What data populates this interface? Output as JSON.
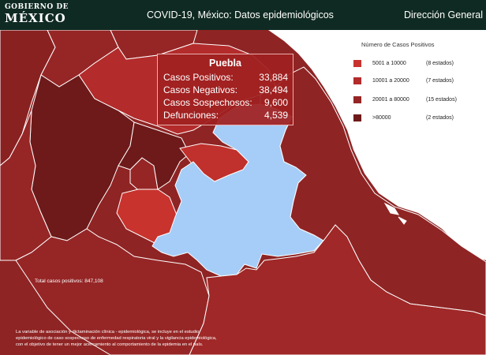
{
  "header": {
    "logo_line1": "GOBIERNO DE",
    "logo_line2": "MÉXICO",
    "title": "COVID-19, México: Datos epidemiológicos",
    "department": "Dirección General"
  },
  "legend": {
    "title": "Número de Casos Positivos",
    "items": [
      {
        "range": "5001 a  10000",
        "count": "(8 estados)",
        "color": "#c8332e"
      },
      {
        "range": "10001 a  20000",
        "count": "(7 estados)",
        "color": "#b32b2b"
      },
      {
        "range": "20001 a  80000",
        "count": "(15 estados)",
        "color": "#962626"
      },
      {
        "range": ">80000",
        "count": "(2 estados)",
        "color": "#6e1a1a"
      }
    ]
  },
  "tooltip": {
    "state": "Puebla",
    "rows": [
      {
        "label": "Casos Positivos:",
        "value": "33,884"
      },
      {
        "label": "Casos Negativos:",
        "value": "38,494"
      },
      {
        "label": "Casos Sospechosos:",
        "value": "9,600"
      },
      {
        "label": "Defunciones:",
        "value": "4,539"
      }
    ]
  },
  "map": {
    "selected_state": "Puebla",
    "selected_color": "#a6cdf7",
    "water_color": "#ffffff"
  },
  "total_text": "Total casos positivos: 847,108",
  "footnote": [
    "La variable de asociación y dictaminación clínica - epidemiológica, se incluye en el estudio",
    "epidemiológico de caso sospechoso de enfermedad respiratoria viral y la vigilancia epidemiológica,",
    "con el objetivo de tener un mejor acercamiento al comportamiento de la epidemia en el país."
  ]
}
